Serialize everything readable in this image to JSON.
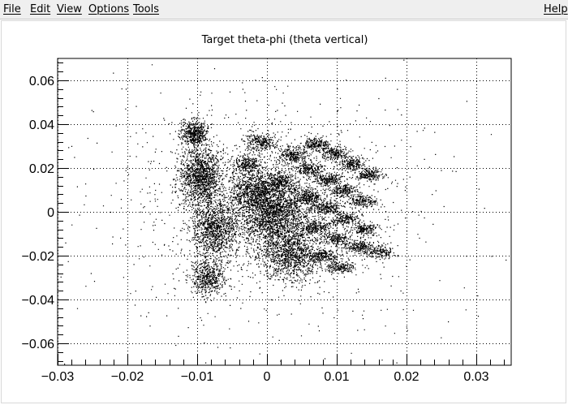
{
  "menubar": {
    "items": [
      "File",
      "Edit",
      "View",
      "Options",
      "Tools"
    ],
    "help": "Help"
  },
  "chart_data": {
    "type": "scatter",
    "title": "Target theta-phi (theta vertical)",
    "xlabel": "",
    "ylabel": "",
    "xlim": [
      -0.03,
      0.035
    ],
    "ylim": [
      -0.07,
      0.07
    ],
    "grid": true,
    "x_ticks": [
      -0.03,
      -0.02,
      -0.01,
      0,
      0.01,
      0.02,
      0.03
    ],
    "x_tick_labels": [
      "−0.03",
      "−0.02",
      "−0.01",
      "0",
      "0.01",
      "0.02",
      "0.03"
    ],
    "y_ticks": [
      0.06,
      0.04,
      0.02,
      0,
      -0.02,
      -0.04,
      -0.06
    ],
    "y_tick_labels": [
      "0.06",
      "0.04",
      "0.02",
      "0",
      "−0.02",
      "−0.04",
      "−0.06"
    ],
    "clusters": [
      {
        "x": -0.0105,
        "y": 0.036,
        "sx": 0.0009,
        "sy": 0.003,
        "n": 500
      },
      {
        "x": -0.0095,
        "y": 0.016,
        "sx": 0.0012,
        "sy": 0.007,
        "n": 1300
      },
      {
        "x": -0.0075,
        "y": -0.008,
        "sx": 0.0013,
        "sy": 0.007,
        "n": 1100
      },
      {
        "x": -0.0085,
        "y": -0.03,
        "sx": 0.0012,
        "sy": 0.004,
        "n": 500
      },
      {
        "x": -0.001,
        "y": 0.032,
        "sx": 0.0012,
        "sy": 0.002,
        "n": 280
      },
      {
        "x": -0.003,
        "y": 0.022,
        "sx": 0.0011,
        "sy": 0.002,
        "n": 260
      },
      {
        "x": 0.001,
        "y": 0.0,
        "sx": 0.0025,
        "sy": 0.008,
        "n": 2300
      },
      {
        "x": 0.0035,
        "y": -0.02,
        "sx": 0.002,
        "sy": 0.006,
        "n": 1000
      },
      {
        "x": -0.002,
        "y": 0.01,
        "sx": 0.0015,
        "sy": 0.005,
        "n": 700
      },
      {
        "x": 0.0035,
        "y": 0.026,
        "sx": 0.001,
        "sy": 0.002,
        "n": 260
      },
      {
        "x": 0.002,
        "y": 0.014,
        "sx": 0.001,
        "sy": 0.002,
        "n": 240
      },
      {
        "x": 0.007,
        "y": 0.031,
        "sx": 0.001,
        "sy": 0.0015,
        "n": 220
      },
      {
        "x": 0.0095,
        "y": 0.027,
        "sx": 0.001,
        "sy": 0.0015,
        "n": 220
      },
      {
        "x": 0.012,
        "y": 0.022,
        "sx": 0.001,
        "sy": 0.0015,
        "n": 220
      },
      {
        "x": 0.0145,
        "y": 0.017,
        "sx": 0.001,
        "sy": 0.0015,
        "n": 210
      },
      {
        "x": 0.006,
        "y": 0.02,
        "sx": 0.001,
        "sy": 0.0015,
        "n": 220
      },
      {
        "x": 0.0085,
        "y": 0.015,
        "sx": 0.001,
        "sy": 0.0015,
        "n": 220
      },
      {
        "x": 0.011,
        "y": 0.01,
        "sx": 0.001,
        "sy": 0.0015,
        "n": 210
      },
      {
        "x": 0.0135,
        "y": 0.005,
        "sx": 0.001,
        "sy": 0.0015,
        "n": 200
      },
      {
        "x": 0.006,
        "y": 0.007,
        "sx": 0.001,
        "sy": 0.0015,
        "n": 230
      },
      {
        "x": 0.0085,
        "y": 0.002,
        "sx": 0.001,
        "sy": 0.0015,
        "n": 220
      },
      {
        "x": 0.011,
        "y": -0.003,
        "sx": 0.001,
        "sy": 0.0015,
        "n": 210
      },
      {
        "x": 0.014,
        "y": -0.008,
        "sx": 0.001,
        "sy": 0.0015,
        "n": 200
      },
      {
        "x": 0.007,
        "y": -0.007,
        "sx": 0.001,
        "sy": 0.0015,
        "n": 220
      },
      {
        "x": 0.01,
        "y": -0.012,
        "sx": 0.001,
        "sy": 0.0015,
        "n": 210
      },
      {
        "x": 0.013,
        "y": -0.016,
        "sx": 0.001,
        "sy": 0.0015,
        "n": 200
      },
      {
        "x": 0.016,
        "y": -0.018,
        "sx": 0.001,
        "sy": 0.0015,
        "n": 190
      },
      {
        "x": 0.008,
        "y": -0.02,
        "sx": 0.001,
        "sy": 0.0015,
        "n": 210
      },
      {
        "x": 0.0105,
        "y": -0.025,
        "sx": 0.001,
        "sy": 0.0015,
        "n": 190
      },
      {
        "x": 0.0,
        "y": 0.0,
        "sx": 0.009,
        "sy": 0.022,
        "n": 1200
      },
      {
        "x": 0.0,
        "y": 0.0,
        "sx": 0.018,
        "sy": 0.045,
        "n": 300
      }
    ]
  }
}
